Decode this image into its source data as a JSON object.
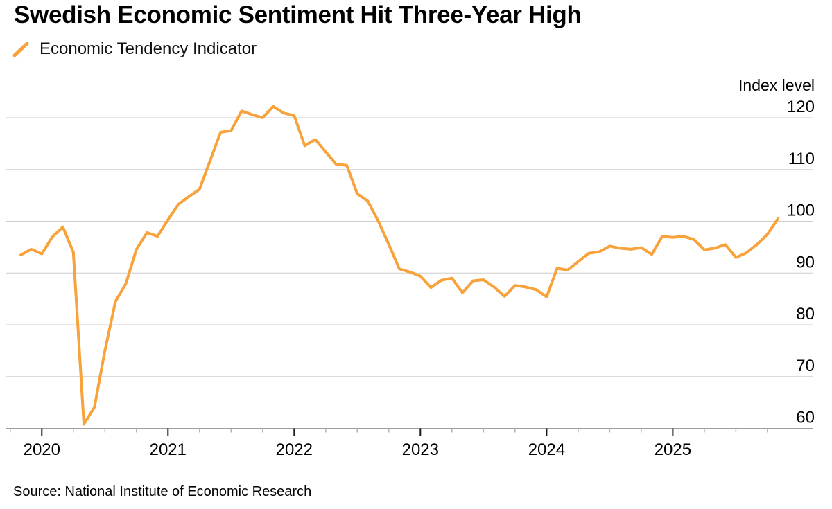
{
  "header": {
    "title": "Swedish Economic Sentiment Hit Three-Year High",
    "legend": {
      "label": "Economic Tendency Indicator",
      "marker_color": "#F7A23B"
    }
  },
  "chart_data": {
    "type": "line",
    "title": "Swedish Economic Sentiment Hit Three-Year High",
    "ylabel": "Index level",
    "xlabel": "",
    "legend_entries": [
      "Economic Tendency Indicator"
    ],
    "legend_position": "top-left",
    "y_axis_side": "right",
    "grid": "horizontal",
    "ylim": [
      60,
      123
    ],
    "y_ticks": [
      60,
      70,
      80,
      90,
      100,
      110,
      120
    ],
    "x_tick_years": [
      "2020",
      "2021",
      "2022",
      "2023",
      "2024",
      "2025"
    ],
    "minor_tick_interval": "quarterly",
    "series": [
      {
        "name": "Economic Tendency Indicator",
        "color": "#F7A23B",
        "start_month": "2019-11",
        "end_month": "2025-11",
        "frequency": "monthly",
        "values": [
          93.5,
          94.6,
          93.7,
          97.0,
          98.9,
          94.0,
          60.8,
          64.1,
          75.0,
          84.5,
          88.0,
          94.6,
          97.8,
          97.1,
          100.3,
          103.3,
          104.8,
          106.2,
          111.7,
          117.2,
          117.5,
          121.3,
          120.6,
          120.0,
          122.2,
          120.9,
          120.4,
          114.6,
          115.8,
          113.4,
          111.0,
          110.8,
          105.3,
          103.9,
          100.0,
          95.5,
          90.8,
          90.2,
          89.4,
          87.2,
          88.6,
          89.0,
          86.2,
          88.5,
          88.7,
          87.3,
          85.5,
          87.6,
          87.3,
          86.8,
          85.4,
          90.9,
          90.6,
          92.2,
          93.8,
          94.1,
          95.2,
          94.8,
          94.6,
          94.9,
          93.6,
          97.1,
          96.9,
          97.1,
          96.5,
          94.5,
          94.8,
          95.5,
          93.0,
          93.9,
          95.5,
          97.5,
          100.5
        ]
      }
    ]
  },
  "footer": {
    "source": "Source: National Institute of Economic Research"
  },
  "colors": {
    "accent_orange": "#F7A23B",
    "gridline": "#CDCDCD",
    "axis_line": "#9F9F9F",
    "major_tick": "#1A1A1A",
    "minor_tick": "#B3B3B3",
    "text": "#000000",
    "background": "#FFFFFF"
  }
}
